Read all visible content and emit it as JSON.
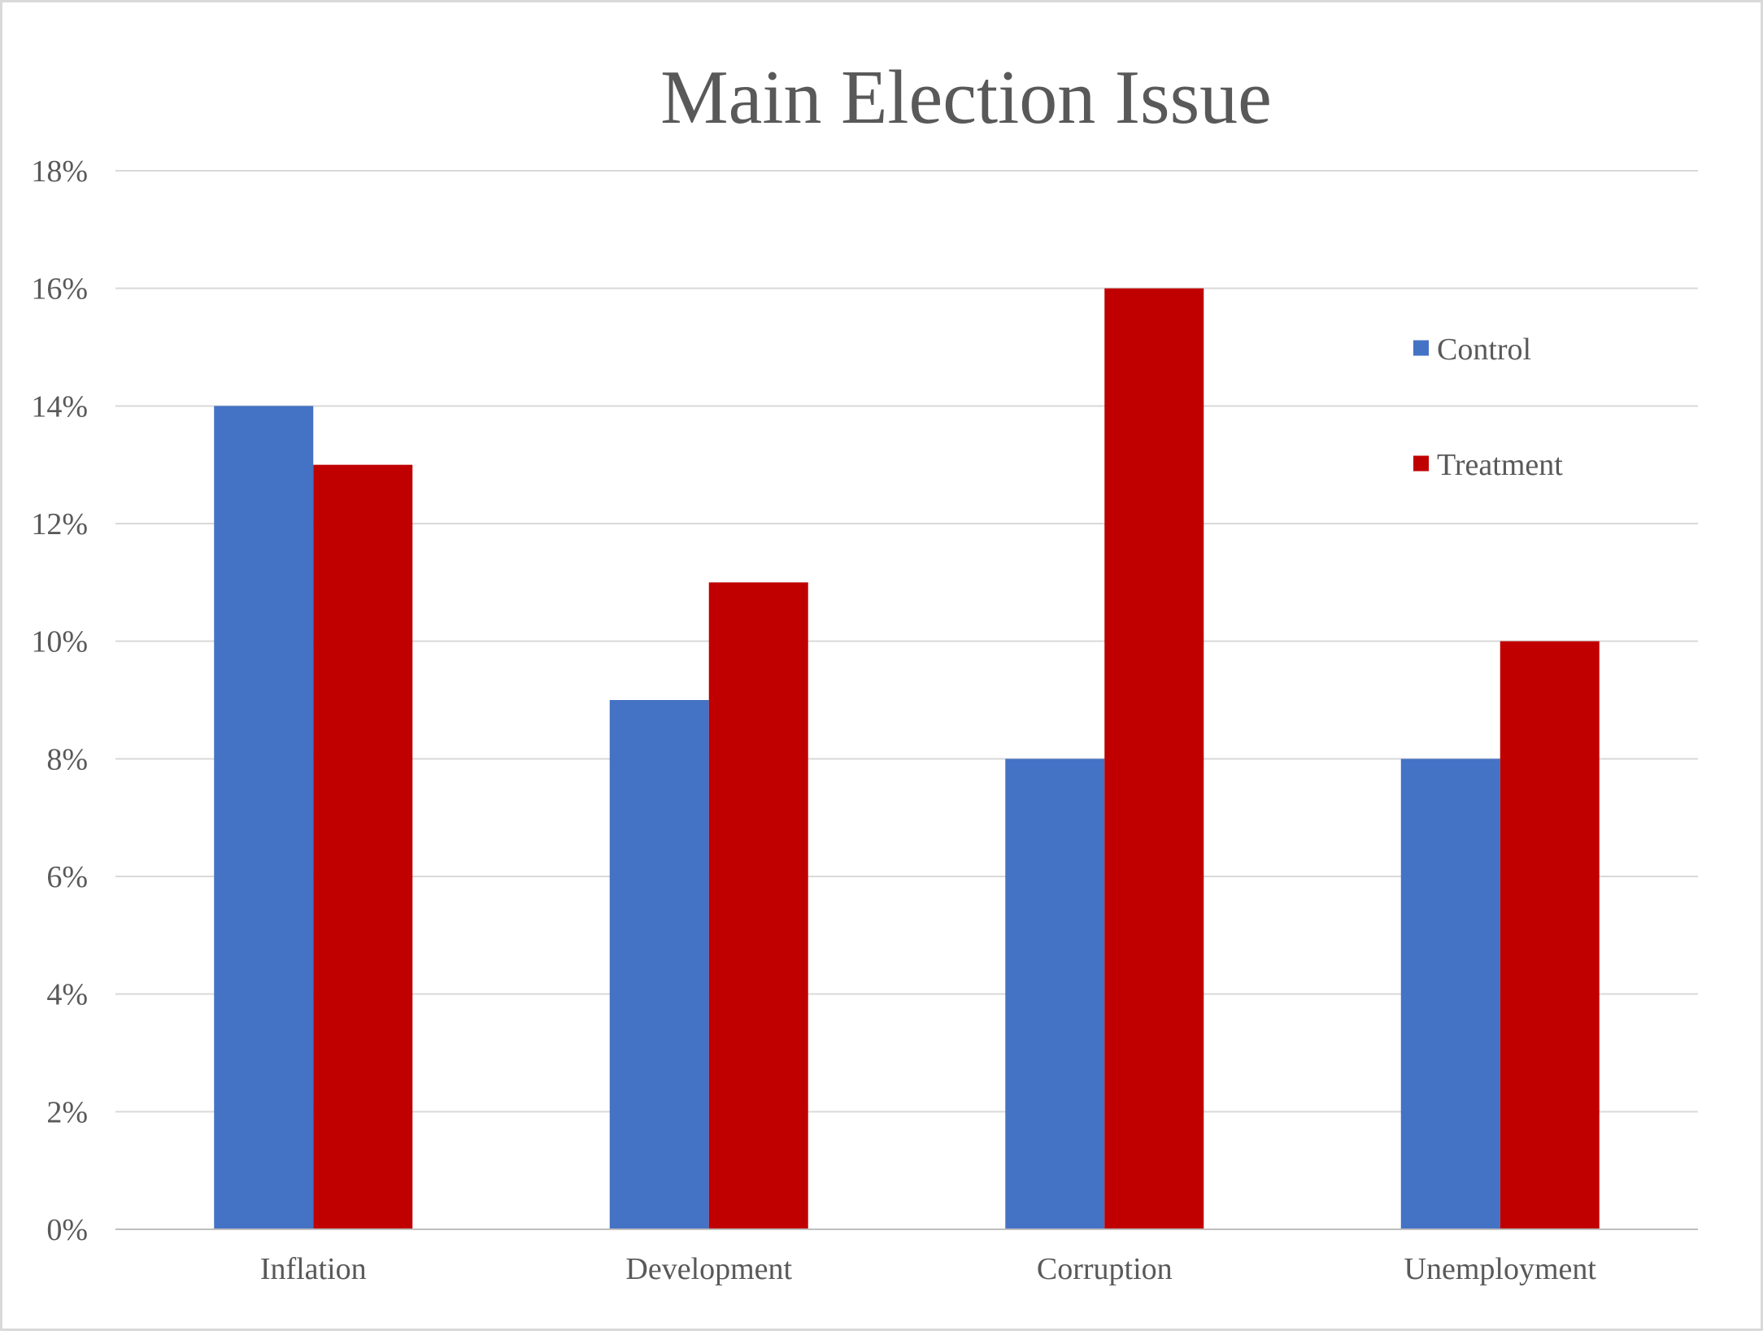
{
  "chart_data": {
    "type": "bar",
    "title": "Main Election Issue",
    "xlabel": "",
    "ylabel": "",
    "categories": [
      "Inflation",
      "Development",
      "Corruption",
      "Unemployment"
    ],
    "series": [
      {
        "name": "Control",
        "values": [
          14,
          9,
          8,
          8
        ],
        "color": "#4472C4"
      },
      {
        "name": "Treatment",
        "values": [
          13,
          11,
          16,
          10
        ],
        "color": "#C00000"
      }
    ],
    "ylim": [
      0,
      18
    ],
    "yticks": [
      "0%",
      "2%",
      "4%",
      "6%",
      "8%",
      "10%",
      "12%",
      "14%",
      "16%",
      "18%"
    ],
    "grid": true,
    "legend_position": "top-right",
    "colors": {
      "gridline": "#D9D9D9",
      "axis_line": "#BFBFBF",
      "text": "#595959",
      "border": "#D9D9D9"
    }
  }
}
